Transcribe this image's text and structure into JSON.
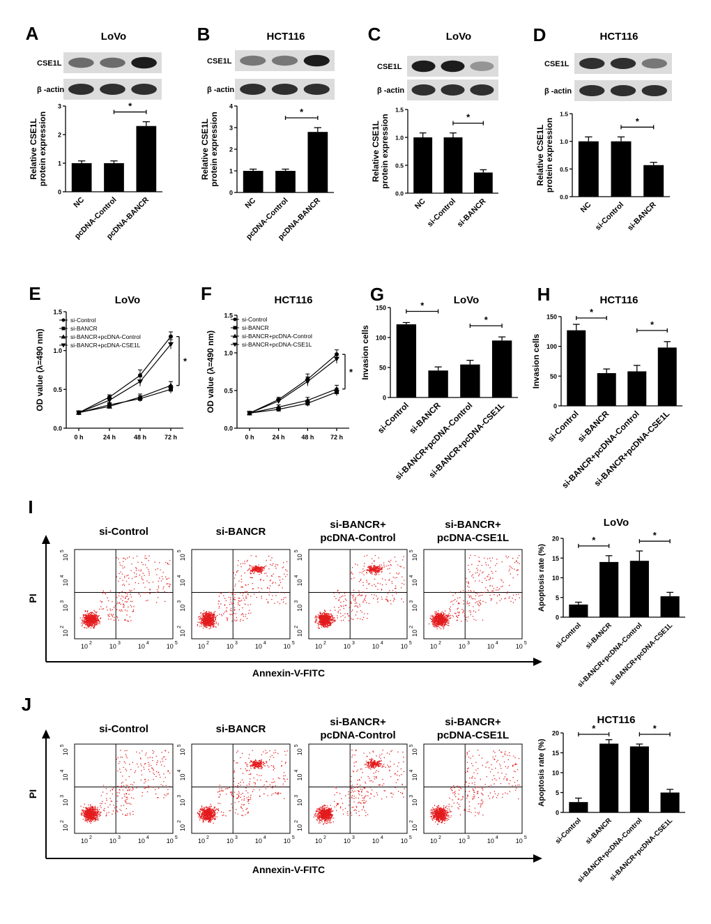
{
  "panels": [
    {
      "id": "A",
      "letter": "A",
      "title": "LoVo",
      "blot_labels": [
        "CSE1L",
        "β -actin"
      ],
      "blot_intensity": [
        [
          0.55,
          0.55,
          0.95
        ],
        [
          0.85,
          0.85,
          0.85
        ]
      ]
    },
    {
      "id": "B",
      "letter": "B",
      "title": "HCT116",
      "blot_labels": [
        "CSE1L",
        "β -actin"
      ],
      "blot_intensity": [
        [
          0.5,
          0.5,
          0.95
        ],
        [
          0.85,
          0.85,
          0.85
        ]
      ]
    },
    {
      "id": "C",
      "letter": "C",
      "title": "LoVo",
      "blot_labels": [
        "CSE1L",
        "β -actin"
      ],
      "blot_intensity": [
        [
          0.95,
          0.95,
          0.35
        ],
        [
          0.85,
          0.85,
          0.85
        ]
      ]
    },
    {
      "id": "D",
      "letter": "D",
      "title": "HCT116",
      "blot_labels": [
        "CSE1L",
        "β -actin"
      ],
      "blot_intensity": [
        [
          0.85,
          0.85,
          0.5
        ],
        [
          0.85,
          0.85,
          0.85
        ]
      ]
    },
    {
      "id": "E",
      "letter": "E",
      "title": "LoVo"
    },
    {
      "id": "F",
      "letter": "F",
      "title": "HCT116"
    },
    {
      "id": "G",
      "letter": "G",
      "title": "LoVo"
    },
    {
      "id": "H",
      "letter": "H",
      "title": "HCT116"
    },
    {
      "id": "I",
      "letter": "I",
      "title": "LoVo"
    },
    {
      "id": "J",
      "letter": "J",
      "title": "HCT116"
    }
  ],
  "chart_data": [
    {
      "id": "A",
      "type": "bar",
      "categories": [
        "NC",
        "pcDNA-Control",
        "pcDNA-BANCR"
      ],
      "values": [
        1.0,
        1.0,
        2.3
      ],
      "errors": [
        0.08,
        0.08,
        0.15
      ],
      "ylabel": [
        "Relative CSE1L",
        "protein expression"
      ],
      "ylim": [
        0,
        3
      ],
      "yticks": [
        0,
        1,
        2,
        3
      ],
      "ytick_labels": [
        "0",
        "1",
        "2",
        "3"
      ],
      "significance": [
        {
          "from": 1,
          "to": 2,
          "label": "*"
        }
      ]
    },
    {
      "id": "B",
      "type": "bar",
      "categories": [
        "NC",
        "pcDNA-Control",
        "pcDNA-BANCR"
      ],
      "values": [
        1.0,
        1.0,
        2.8
      ],
      "errors": [
        0.08,
        0.08,
        0.2
      ],
      "ylabel": [
        "Relative CSE1L",
        "protein expression"
      ],
      "ylim": [
        0,
        4
      ],
      "yticks": [
        0,
        1,
        2,
        3,
        4
      ],
      "ytick_labels": [
        "0",
        "1",
        "2",
        "3",
        "4"
      ],
      "significance": [
        {
          "from": 1,
          "to": 2,
          "label": "*"
        }
      ]
    },
    {
      "id": "C",
      "type": "bar",
      "categories": [
        "NC",
        "si-Control",
        "si-BANCR"
      ],
      "values": [
        1.0,
        1.0,
        0.37
      ],
      "errors": [
        0.08,
        0.08,
        0.05
      ],
      "ylabel": [
        "Relative CSE1L",
        "protein expression"
      ],
      "ylim": [
        0,
        1.5
      ],
      "yticks": [
        0,
        0.5,
        1.0,
        1.5
      ],
      "ytick_labels": [
        "0.0",
        "0.5",
        "1.0",
        "1.5"
      ],
      "significance": [
        {
          "from": 1,
          "to": 2,
          "label": "*"
        }
      ]
    },
    {
      "id": "D",
      "type": "bar",
      "categories": [
        "NC",
        "si-Control",
        "si-BANCR"
      ],
      "values": [
        1.0,
        1.0,
        0.57
      ],
      "errors": [
        0.08,
        0.08,
        0.05
      ],
      "ylabel": [
        "Relative CSE1L",
        "protein expression"
      ],
      "ylim": [
        0,
        1.5
      ],
      "yticks": [
        0,
        0.5,
        1.0,
        1.5
      ],
      "ytick_labels": [
        "0.0",
        "0.5",
        "1.0",
        "1.5"
      ],
      "significance": [
        {
          "from": 1,
          "to": 2,
          "label": "*"
        }
      ]
    },
    {
      "id": "E",
      "type": "line",
      "x": [
        "0 h",
        "24 h",
        "48 h",
        "72 h"
      ],
      "series": [
        {
          "name": "si-Control",
          "marker": "circle",
          "values": [
            0.2,
            0.4,
            0.68,
            1.18
          ],
          "errors": [
            0.01,
            0.03,
            0.07,
            0.06
          ]
        },
        {
          "name": "si-BANCR",
          "marker": "square",
          "values": [
            0.2,
            0.3,
            0.38,
            0.5
          ],
          "errors": [
            0.01,
            0.03,
            0.04,
            0.05
          ]
        },
        {
          "name": "si-BANCR+pcDNA-Control",
          "marker": "triangle-up",
          "values": [
            0.2,
            0.28,
            0.4,
            0.55
          ],
          "errors": [
            0.01,
            0.03,
            0.04,
            0.05
          ]
        },
        {
          "name": "si-BANCR+pcDNA-CSE1L",
          "marker": "triangle-down",
          "values": [
            0.2,
            0.36,
            0.6,
            1.08
          ],
          "errors": [
            0.01,
            0.03,
            0.06,
            0.06
          ]
        }
      ],
      "ylabel": "OD value (λ=490 nm)",
      "ylim": [
        0,
        1.5
      ],
      "yticks": [
        0,
        0.5,
        1.0,
        1.5
      ],
      "ytick_labels": [
        "0.0",
        "0.5",
        "1.0",
        "1.5"
      ],
      "significance_label": "*"
    },
    {
      "id": "F",
      "type": "line",
      "x": [
        "0 h",
        "24 h",
        "48 h",
        "72 h"
      ],
      "series": [
        {
          "name": "si-Control",
          "marker": "circle",
          "values": [
            0.2,
            0.38,
            0.65,
            0.98
          ],
          "errors": [
            0.01,
            0.03,
            0.07,
            0.06
          ]
        },
        {
          "name": "si-BANCR",
          "marker": "square",
          "values": [
            0.2,
            0.25,
            0.33,
            0.48
          ],
          "errors": [
            0.01,
            0.03,
            0.04,
            0.05
          ]
        },
        {
          "name": "si-BANCR+pcDNA-Control",
          "marker": "triangle-up",
          "values": [
            0.2,
            0.28,
            0.37,
            0.52
          ],
          "errors": [
            0.01,
            0.03,
            0.04,
            0.05
          ]
        },
        {
          "name": "si-BANCR+pcDNA-CSE1L",
          "marker": "triangle-down",
          "values": [
            0.2,
            0.36,
            0.62,
            0.92
          ],
          "errors": [
            0.01,
            0.03,
            0.06,
            0.06
          ]
        }
      ],
      "ylabel": "OD value (λ=490 nm)",
      "ylim": [
        0,
        1.5
      ],
      "yticks": [
        0,
        0.5,
        1.0,
        1.5
      ],
      "ytick_labels": [
        "0.0",
        "0.5",
        "1.0",
        "1.5"
      ],
      "significance_label": "*"
    },
    {
      "id": "G",
      "type": "bar",
      "categories": [
        "si-Control",
        "si-BANCR",
        "si-BANCR+pcDNA-Control",
        "si-BANCR+pcDNA-CSE1L"
      ],
      "values": [
        122,
        45,
        55,
        95
      ],
      "errors": [
        3,
        6,
        7,
        6
      ],
      "ylabel": [
        "Invasion cells"
      ],
      "ylim": [
        0,
        150
      ],
      "yticks": [
        0,
        50,
        100,
        150
      ],
      "ytick_labels": [
        "0",
        "50",
        "100",
        "150"
      ],
      "significance": [
        {
          "from": 0,
          "to": 1,
          "label": "*"
        },
        {
          "from": 2,
          "to": 3,
          "label": "*"
        }
      ]
    },
    {
      "id": "H",
      "type": "bar",
      "categories": [
        "si-Control",
        "si-BANCR",
        "si-BANCR+pcDNA-Control",
        "si-BANCR+pcDNA-CSE1L"
      ],
      "values": [
        127,
        55,
        58,
        98
      ],
      "errors": [
        10,
        7,
        10,
        10
      ],
      "ylabel": [
        "Invasion cells"
      ],
      "ylim": [
        0,
        150
      ],
      "yticks": [
        0,
        50,
        100,
        150
      ],
      "ytick_labels": [
        "0",
        "50",
        "100",
        "150"
      ],
      "significance": [
        {
          "from": 0,
          "to": 1,
          "label": "*"
        },
        {
          "from": 2,
          "to": 3,
          "label": "*"
        }
      ]
    },
    {
      "id": "I",
      "type": "bar",
      "categories": [
        "si-Control",
        "si-BANCR",
        "si-BANCR+pcDNA-Control",
        "si-BANCR+pcDNA-CSE1L"
      ],
      "values": [
        3.2,
        14.0,
        14.3,
        5.3
      ],
      "errors": [
        0.6,
        1.6,
        2.5,
        1.0
      ],
      "ylabel": [
        "Apoptosis rate (%)"
      ],
      "ylim": [
        0,
        20
      ],
      "yticks": [
        0,
        5,
        10,
        15,
        20
      ],
      "ytick_labels": [
        "0",
        "5",
        "10",
        "15",
        "20"
      ],
      "significance": [
        {
          "from": 0,
          "to": 1,
          "label": "*"
        },
        {
          "from": 2,
          "to": 3,
          "label": "*"
        }
      ]
    },
    {
      "id": "J",
      "type": "bar",
      "categories": [
        "si-Control",
        "si-BANCR",
        "si-BANCR+pcDNA-Control",
        "si-BANCR+pcDNA-CSE1L"
      ],
      "values": [
        2.6,
        17.3,
        16.6,
        5.0
      ],
      "errors": [
        1.0,
        1.0,
        0.6,
        0.8
      ],
      "ylabel": [
        "Apoptosis rate (%)"
      ],
      "ylim": [
        0,
        20
      ],
      "yticks": [
        0,
        5,
        10,
        15,
        20
      ],
      "ytick_labels": [
        "0",
        "5",
        "10",
        "15",
        "20"
      ],
      "significance": [
        {
          "from": 0,
          "to": 1,
          "label": "*"
        },
        {
          "from": 2,
          "to": 3,
          "label": "*"
        }
      ]
    }
  ],
  "flow": [
    {
      "id": "I",
      "ylabel": "PI",
      "xlabel": "Annexin-V-FITC",
      "axis_ticks": [
        "10",
        "10",
        "10",
        "10"
      ],
      "axis_exponents": [
        "2",
        "3",
        "4",
        "5"
      ],
      "plots": [
        {
          "title": [
            "si-Control"
          ],
          "late_apoptotic": "low",
          "point_color": "#e31a1c"
        },
        {
          "title": [
            "si-BANCR"
          ],
          "late_apoptotic": "high",
          "point_color": "#e31a1c"
        },
        {
          "title": [
            "si-BANCR+",
            "pcDNA-Control"
          ],
          "late_apoptotic": "high",
          "point_color": "#e31a1c"
        },
        {
          "title": [
            "si-BANCR+",
            "pcDNA-CSE1L"
          ],
          "late_apoptotic": "low",
          "point_color": "#e31a1c"
        }
      ]
    },
    {
      "id": "J",
      "ylabel": "PI",
      "xlabel": "Annexin-V-FITC",
      "axis_ticks": [
        "10",
        "10",
        "10",
        "10"
      ],
      "axis_exponents": [
        "2",
        "3",
        "4",
        "5"
      ],
      "plots": [
        {
          "title": [
            "si-Control"
          ],
          "late_apoptotic": "low",
          "point_color": "#e31a1c"
        },
        {
          "title": [
            "si-BANCR"
          ],
          "late_apoptotic": "high",
          "point_color": "#e31a1c"
        },
        {
          "title": [
            "si-BANCR+",
            "pcDNA-Control"
          ],
          "late_apoptotic": "high",
          "point_color": "#e31a1c"
        },
        {
          "title": [
            "si-BANCR+",
            "pcDNA-CSE1L"
          ],
          "late_apoptotic": "low",
          "point_color": "#e31a1c"
        }
      ]
    }
  ],
  "colors": {
    "bar": "#000000",
    "axis": "#000000",
    "blot_bg": "#dcdcdc",
    "flow_points": "#e31a1c"
  }
}
